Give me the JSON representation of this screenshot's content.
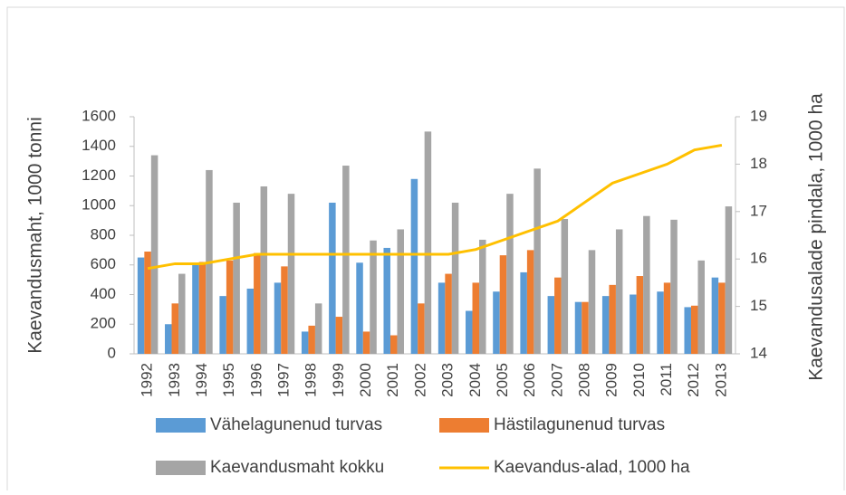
{
  "chart_data": {
    "type": "bar_line",
    "y_label": "Kaevandusmaht, 1000  tonni",
    "y2_label": "Kaevandusalade pindala, 1000 ha",
    "categories": [
      "1992",
      "1993",
      "1994",
      "1995",
      "1996",
      "1997",
      "1998",
      "1999",
      "2000",
      "2001",
      "2002",
      "2003",
      "2004",
      "2005",
      "2006",
      "2007",
      "2008",
      "2009",
      "2010",
      "2011",
      "2012",
      "2013"
    ],
    "series": [
      {
        "name": "Vähelagunenud turvas",
        "color": "#5B9BD5",
        "kind": "bar",
        "values": [
          650,
          200,
          600,
          390,
          440,
          480,
          150,
          1020,
          615,
          715,
          1180,
          480,
          290,
          420,
          550,
          390,
          350,
          390,
          400,
          420,
          315,
          515
        ]
      },
      {
        "name": "Hästilagunenud turvas",
        "color": "#ED7D31",
        "kind": "bar",
        "values": [
          690,
          340,
          620,
          630,
          680,
          590,
          190,
          250,
          150,
          125,
          340,
          540,
          480,
          665,
          700,
          515,
          350,
          465,
          525,
          480,
          325,
          480
        ]
      },
      {
        "name": "Kaevandusmaht kokku",
        "color": "#A5A5A5",
        "kind": "bar",
        "values": [
          1340,
          540,
          1240,
          1020,
          1130,
          1080,
          340,
          1270,
          765,
          840,
          1500,
          1020,
          770,
          1080,
          1250,
          910,
          700,
          840,
          930,
          905,
          630,
          995
        ]
      },
      {
        "name": "Kaevandus-alad, 1000 ha",
        "color": "#FFC000",
        "kind": "line",
        "axis": "y2",
        "values": [
          15.8,
          15.9,
          15.9,
          16.0,
          16.1,
          16.1,
          16.1,
          16.1,
          16.1,
          16.1,
          16.1,
          16.1,
          16.2,
          16.4,
          16.6,
          16.8,
          17.2,
          17.6,
          17.8,
          18.0,
          18.3,
          18.4
        ]
      }
    ],
    "ylim": [
      0,
      1600
    ],
    "yticks": [
      0,
      200,
      400,
      600,
      800,
      1000,
      1200,
      1400,
      1600
    ],
    "y2lim": [
      14,
      19
    ],
    "y2ticks": [
      14,
      15,
      16,
      17,
      18,
      19
    ]
  }
}
